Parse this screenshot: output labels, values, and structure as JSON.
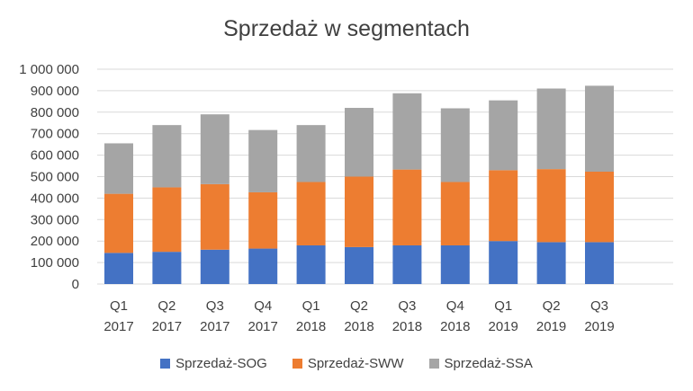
{
  "chart_data": {
    "type": "bar",
    "stacked": true,
    "title": "Sprzedaż w segmentach",
    "categories": [
      [
        "Q1",
        "2017"
      ],
      [
        "Q2",
        "2017"
      ],
      [
        "Q3",
        "2017"
      ],
      [
        "Q4",
        "2017"
      ],
      [
        "Q1",
        "2018"
      ],
      [
        "Q2",
        "2018"
      ],
      [
        "Q3",
        "2018"
      ],
      [
        "Q4",
        "2018"
      ],
      [
        "Q1",
        "2019"
      ],
      [
        "Q2",
        "2019"
      ],
      [
        "Q3",
        "2019"
      ]
    ],
    "series": [
      {
        "name": "Sprzedaż-SOG",
        "color": "#4472C4",
        "values": [
          145000,
          150000,
          160000,
          165000,
          180000,
          172000,
          180000,
          180000,
          200000,
          195000,
          195000
        ]
      },
      {
        "name": "Sprzedaż-SWW",
        "color": "#ED7D31",
        "values": [
          275000,
          300000,
          305000,
          262000,
          295000,
          328000,
          353000,
          295000,
          330000,
          340000,
          328000
        ]
      },
      {
        "name": "Sprzedaż-SSA",
        "color": "#A5A5A5",
        "values": [
          235000,
          290000,
          325000,
          290000,
          265000,
          320000,
          355000,
          343000,
          325000,
          375000,
          400000
        ]
      }
    ],
    "ylim": [
      0,
      1000000
    ],
    "yticks": [
      0,
      100000,
      200000,
      300000,
      400000,
      500000,
      600000,
      700000,
      800000,
      900000,
      1000000
    ],
    "ytick_labels": [
      "0",
      "100 000",
      "200 000",
      "300 000",
      "400 000",
      "500 000",
      "600 000",
      "700 000",
      "800 000",
      "900 000",
      "1 000 000"
    ],
    "grid": true,
    "legend_position": "bottom"
  }
}
